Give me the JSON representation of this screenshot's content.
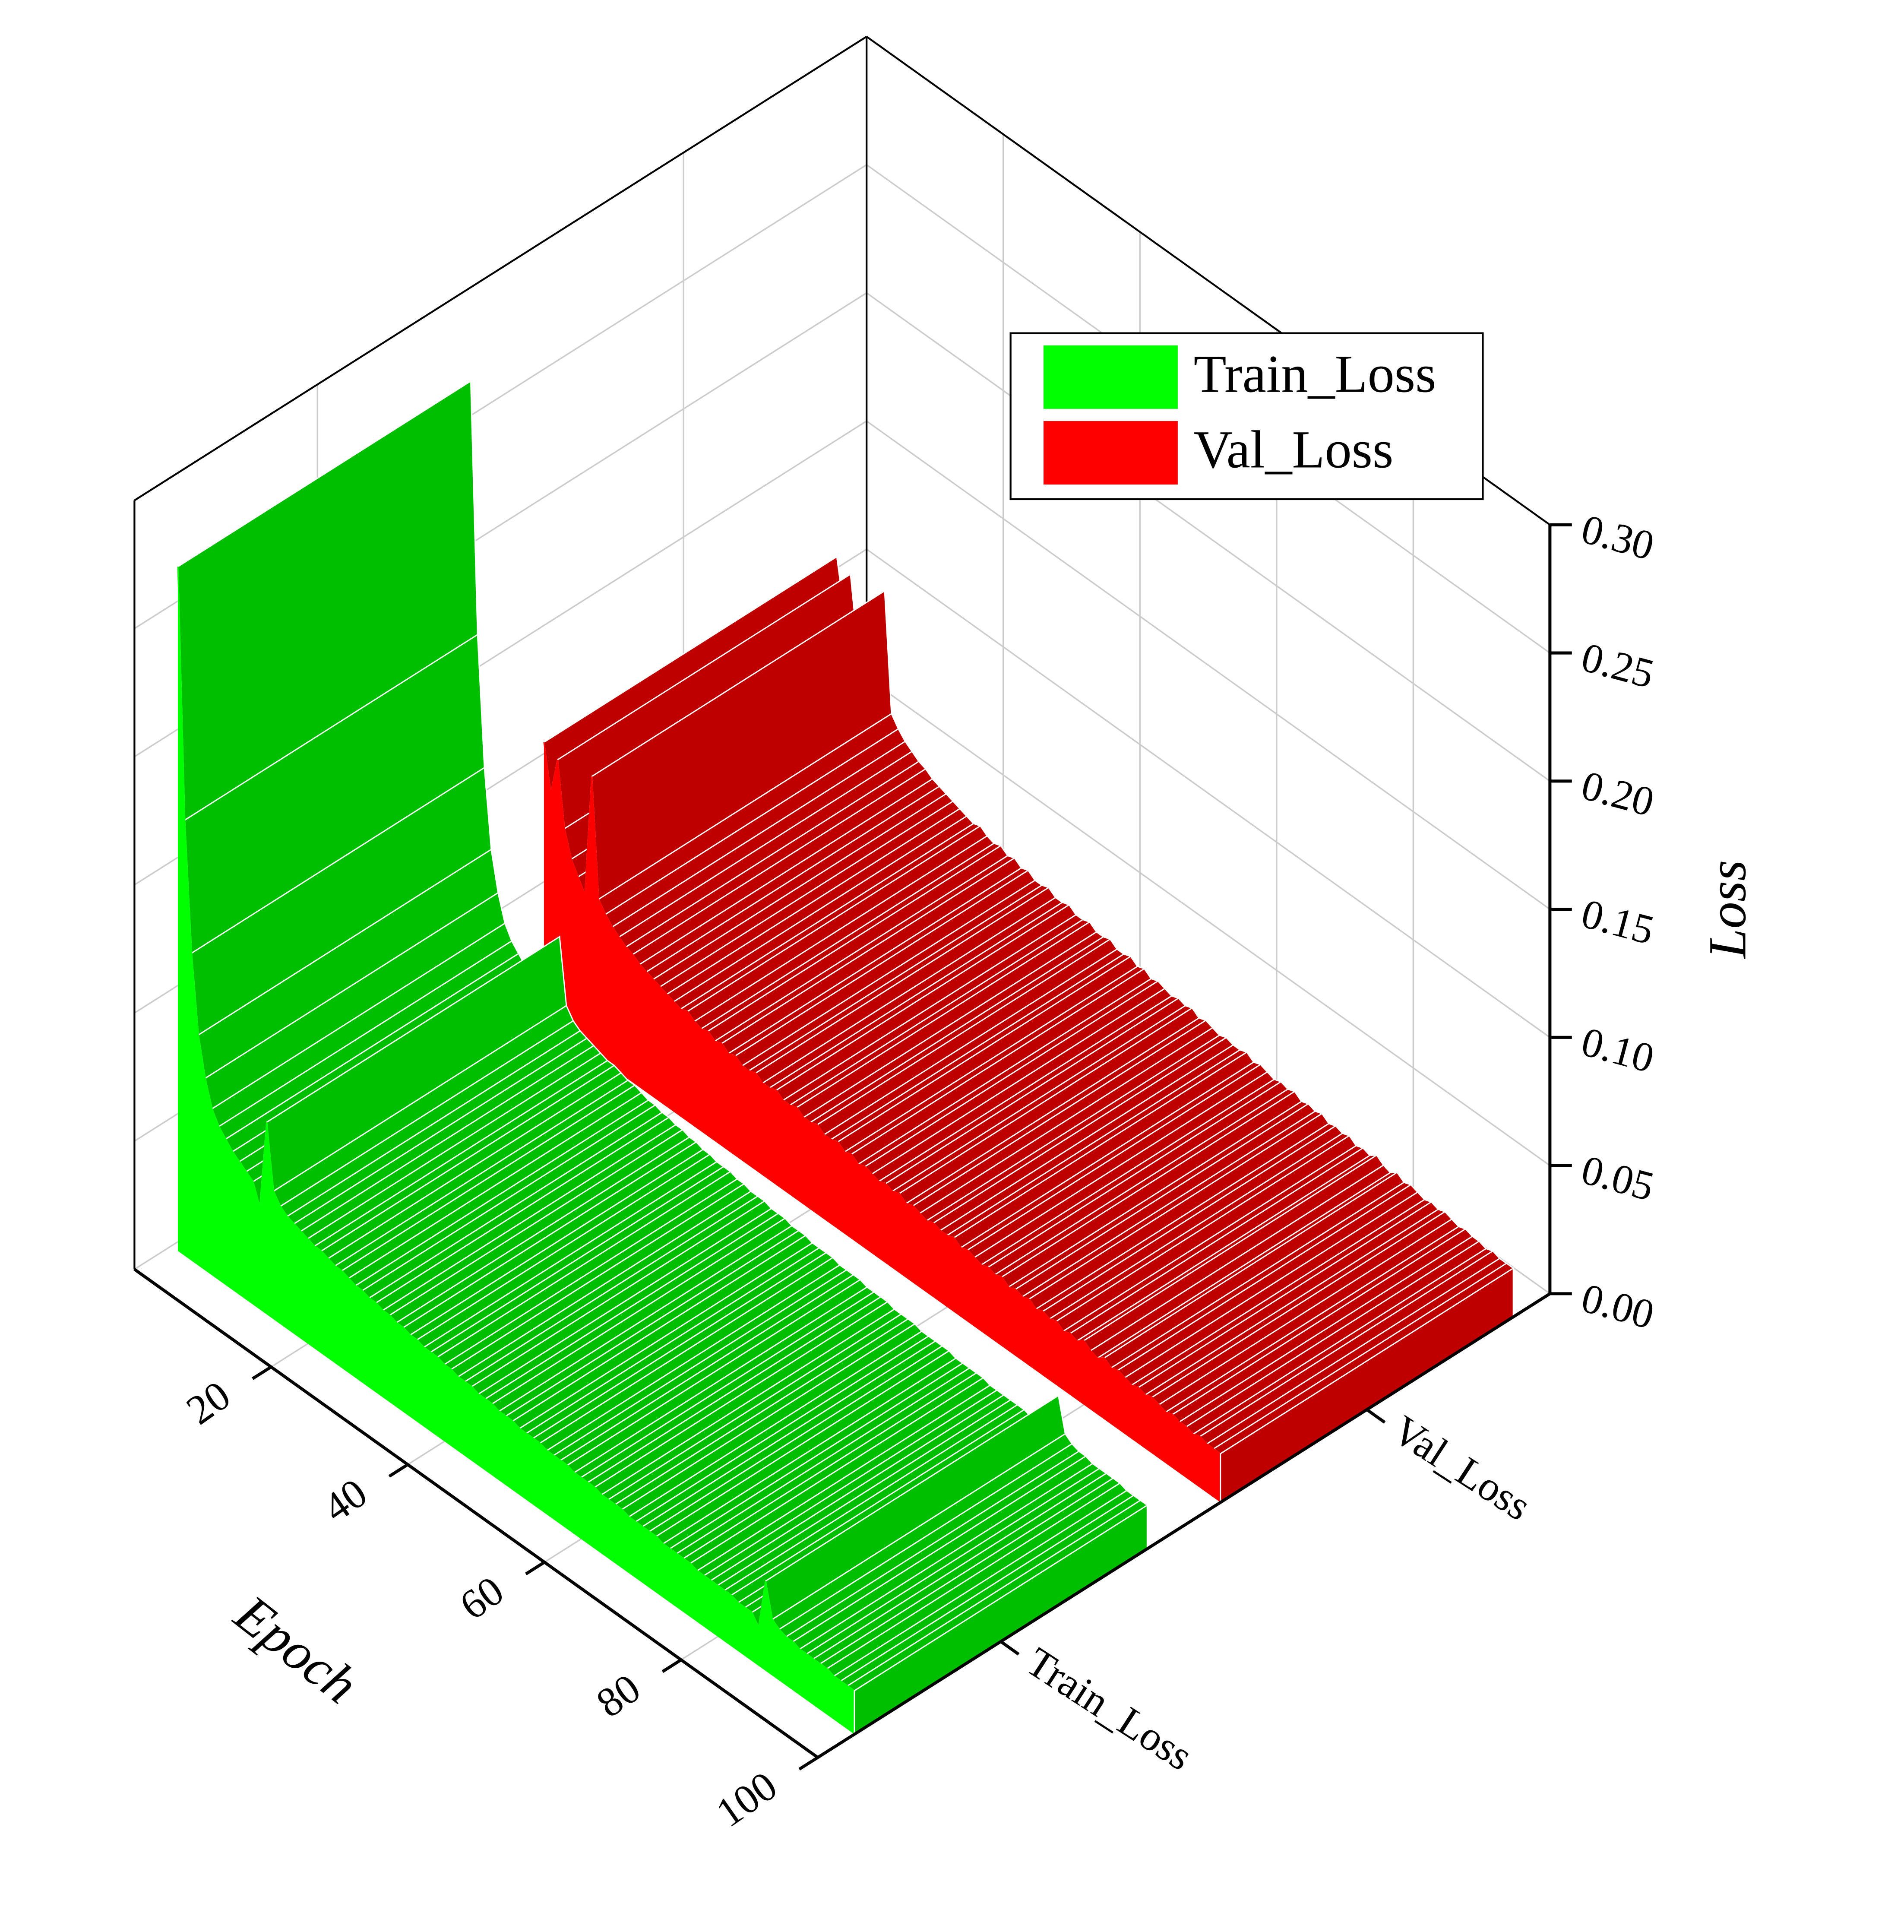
{
  "chart_data": {
    "type": "wall",
    "x_label": "Epoch",
    "y_label": "Loss",
    "x": [
      1,
      2,
      3,
      4,
      5,
      6,
      7,
      8,
      9,
      10,
      11,
      12,
      13,
      14,
      15,
      16,
      17,
      18,
      19,
      20,
      21,
      22,
      23,
      24,
      25,
      26,
      27,
      28,
      29,
      30,
      31,
      32,
      33,
      34,
      35,
      36,
      37,
      38,
      39,
      40,
      41,
      42,
      43,
      44,
      45,
      46,
      47,
      48,
      49,
      50,
      51,
      52,
      53,
      54,
      55,
      56,
      57,
      58,
      59,
      60,
      61,
      62,
      63,
      64,
      65,
      66,
      67,
      68,
      69,
      70,
      71,
      72,
      73,
      74,
      75,
      76,
      77,
      78,
      79,
      80,
      81,
      82,
      83,
      84,
      85,
      86,
      87,
      88,
      89,
      90,
      91,
      92,
      93,
      94,
      95,
      96,
      97,
      98,
      99,
      100
    ],
    "series": [
      {
        "name": "Train_Loss",
        "color": "#00ff00",
        "values": [
          0.267,
          0.17,
          0.12,
          0.09,
          0.075,
          0.065,
          0.06,
          0.057,
          0.054,
          0.052,
          0.05,
          0.048,
          0.04,
          0.075,
          0.05,
          0.046,
          0.044,
          0.043,
          0.042,
          0.041,
          0.04,
          0.04,
          0.039,
          0.038,
          0.038,
          0.037,
          0.036,
          0.036,
          0.035,
          0.035,
          0.034,
          0.034,
          0.033,
          0.033,
          0.032,
          0.032,
          0.031,
          0.031,
          0.031,
          0.03,
          0.03,
          0.029,
          0.029,
          0.029,
          0.028,
          0.028,
          0.028,
          0.027,
          0.027,
          0.027,
          0.026,
          0.026,
          0.026,
          0.026,
          0.025,
          0.025,
          0.025,
          0.025,
          0.024,
          0.024,
          0.024,
          0.024,
          0.023,
          0.023,
          0.023,
          0.023,
          0.022,
          0.022,
          0.022,
          0.022,
          0.022,
          0.021,
          0.021,
          0.021,
          0.021,
          0.021,
          0.02,
          0.02,
          0.02,
          0.02,
          0.02,
          0.02,
          0.019,
          0.019,
          0.019,
          0.015,
          0.035,
          0.022,
          0.02,
          0.019,
          0.019,
          0.018,
          0.018,
          0.018,
          0.018,
          0.018,
          0.017,
          0.017,
          0.017,
          0.017
        ]
      },
      {
        "name": "Val_Loss",
        "color": "#ff0000",
        "values": [
          0.108,
          0.09,
          0.105,
          0.08,
          0.07,
          0.065,
          0.06,
          0.108,
          0.062,
          0.058,
          0.055,
          0.053,
          0.051,
          0.05,
          0.048,
          0.047,
          0.046,
          0.045,
          0.044,
          0.043,
          0.042,
          0.043,
          0.041,
          0.04,
          0.041,
          0.039,
          0.04,
          0.038,
          0.039,
          0.037,
          0.037,
          0.038,
          0.036,
          0.036,
          0.037,
          0.035,
          0.035,
          0.036,
          0.034,
          0.034,
          0.035,
          0.033,
          0.033,
          0.034,
          0.032,
          0.033,
          0.031,
          0.032,
          0.031,
          0.03,
          0.031,
          0.03,
          0.031,
          0.029,
          0.03,
          0.029,
          0.028,
          0.029,
          0.028,
          0.028,
          0.029,
          0.027,
          0.028,
          0.027,
          0.026,
          0.027,
          0.026,
          0.027,
          0.025,
          0.026,
          0.025,
          0.026,
          0.024,
          0.025,
          0.024,
          0.025,
          0.023,
          0.024,
          0.023,
          0.025,
          0.023,
          0.022,
          0.024,
          0.022,
          0.023,
          0.022,
          0.021,
          0.022,
          0.021,
          0.022,
          0.021,
          0.02,
          0.021,
          0.02,
          0.02,
          0.019,
          0.02,
          0.019,
          0.019,
          0.019
        ]
      }
    ],
    "xlim": [
      0,
      100
    ],
    "xticks": [
      20,
      40,
      60,
      80,
      100
    ],
    "ylim": [
      0,
      0.3
    ],
    "yticks": [
      {
        "value": 0,
        "label": "0.00"
      },
      {
        "value": 0.05,
        "label": "0.05"
      },
      {
        "value": 0.1,
        "label": "0.10"
      },
      {
        "value": 0.15,
        "label": "0.15"
      },
      {
        "value": 0.2,
        "label": "0.20"
      },
      {
        "value": 0.25,
        "label": "0.25"
      },
      {
        "value": 0.3,
        "label": "0.30"
      }
    ],
    "grid": true,
    "legend": "top-right"
  }
}
